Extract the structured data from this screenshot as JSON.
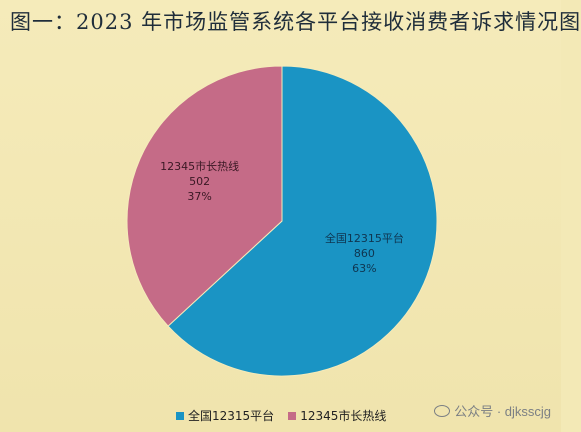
{
  "title": "图一：2023 年市场监管系统各平台接收消费者诉求情况图",
  "chart_data": {
    "type": "pie",
    "slices": [
      {
        "label": "全国12315平台",
        "value": 860,
        "percent": "63%",
        "color": "#1a94c4"
      },
      {
        "label": "12345市长热线",
        "value": 502,
        "percent": "37%",
        "color": "#c56b87"
      }
    ],
    "legend": [
      "全国12315平台",
      "12345市长热线"
    ]
  },
  "watermark": {
    "text": "公众号 · djksscjg",
    "icon": "wechat-icon"
  }
}
